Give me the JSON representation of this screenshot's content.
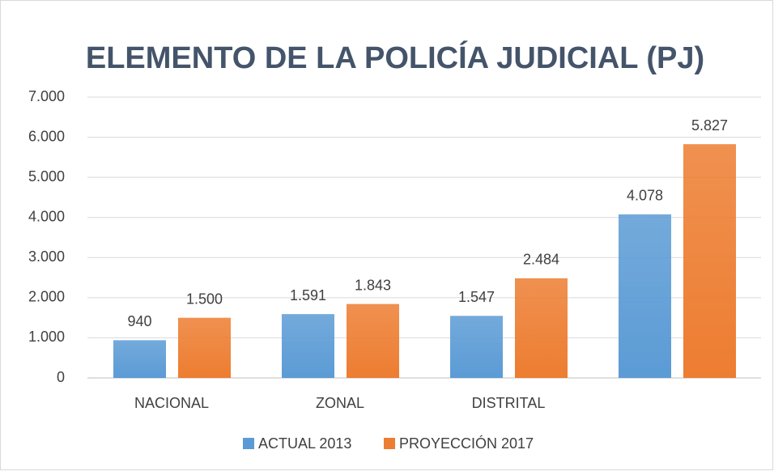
{
  "chart_data": {
    "type": "bar",
    "title": "ELEMENTO DE LA POLICÍA JUDICIAL (PJ)",
    "categories": [
      "NACIONAL",
      "ZONAL",
      "DISTRITAL",
      null
    ],
    "series": [
      {
        "name": "ACTUAL 2013",
        "color": "#5b9bd5",
        "values": [
          940,
          1591,
          1547,
          4078
        ],
        "value_labels": [
          "940",
          "1.591",
          "1.547",
          "4.078"
        ]
      },
      {
        "name": "PROYECCIÓN 2017",
        "color": "#ed7d31",
        "values": [
          1500,
          1843,
          2484,
          5827
        ],
        "value_labels": [
          "1.500",
          "1.843",
          "2.484",
          "5.827"
        ]
      }
    ],
    "ylim": [
      0,
      7000
    ],
    "yticks": [
      0,
      {
        "value": 1000,
        "label": "1.000"
      },
      {
        "value": 2000,
        "label": "2.000"
      },
      {
        "value": 3000,
        "label": "3.000"
      },
      {
        "value": 4000,
        "label": "4.000"
      },
      {
        "value": 5000,
        "label": "5.000"
      },
      {
        "value": 6000,
        "label": "6.000"
      },
      {
        "value": 7000,
        "label": "7.000"
      }
    ],
    "grid": true,
    "legend": "bottom"
  }
}
